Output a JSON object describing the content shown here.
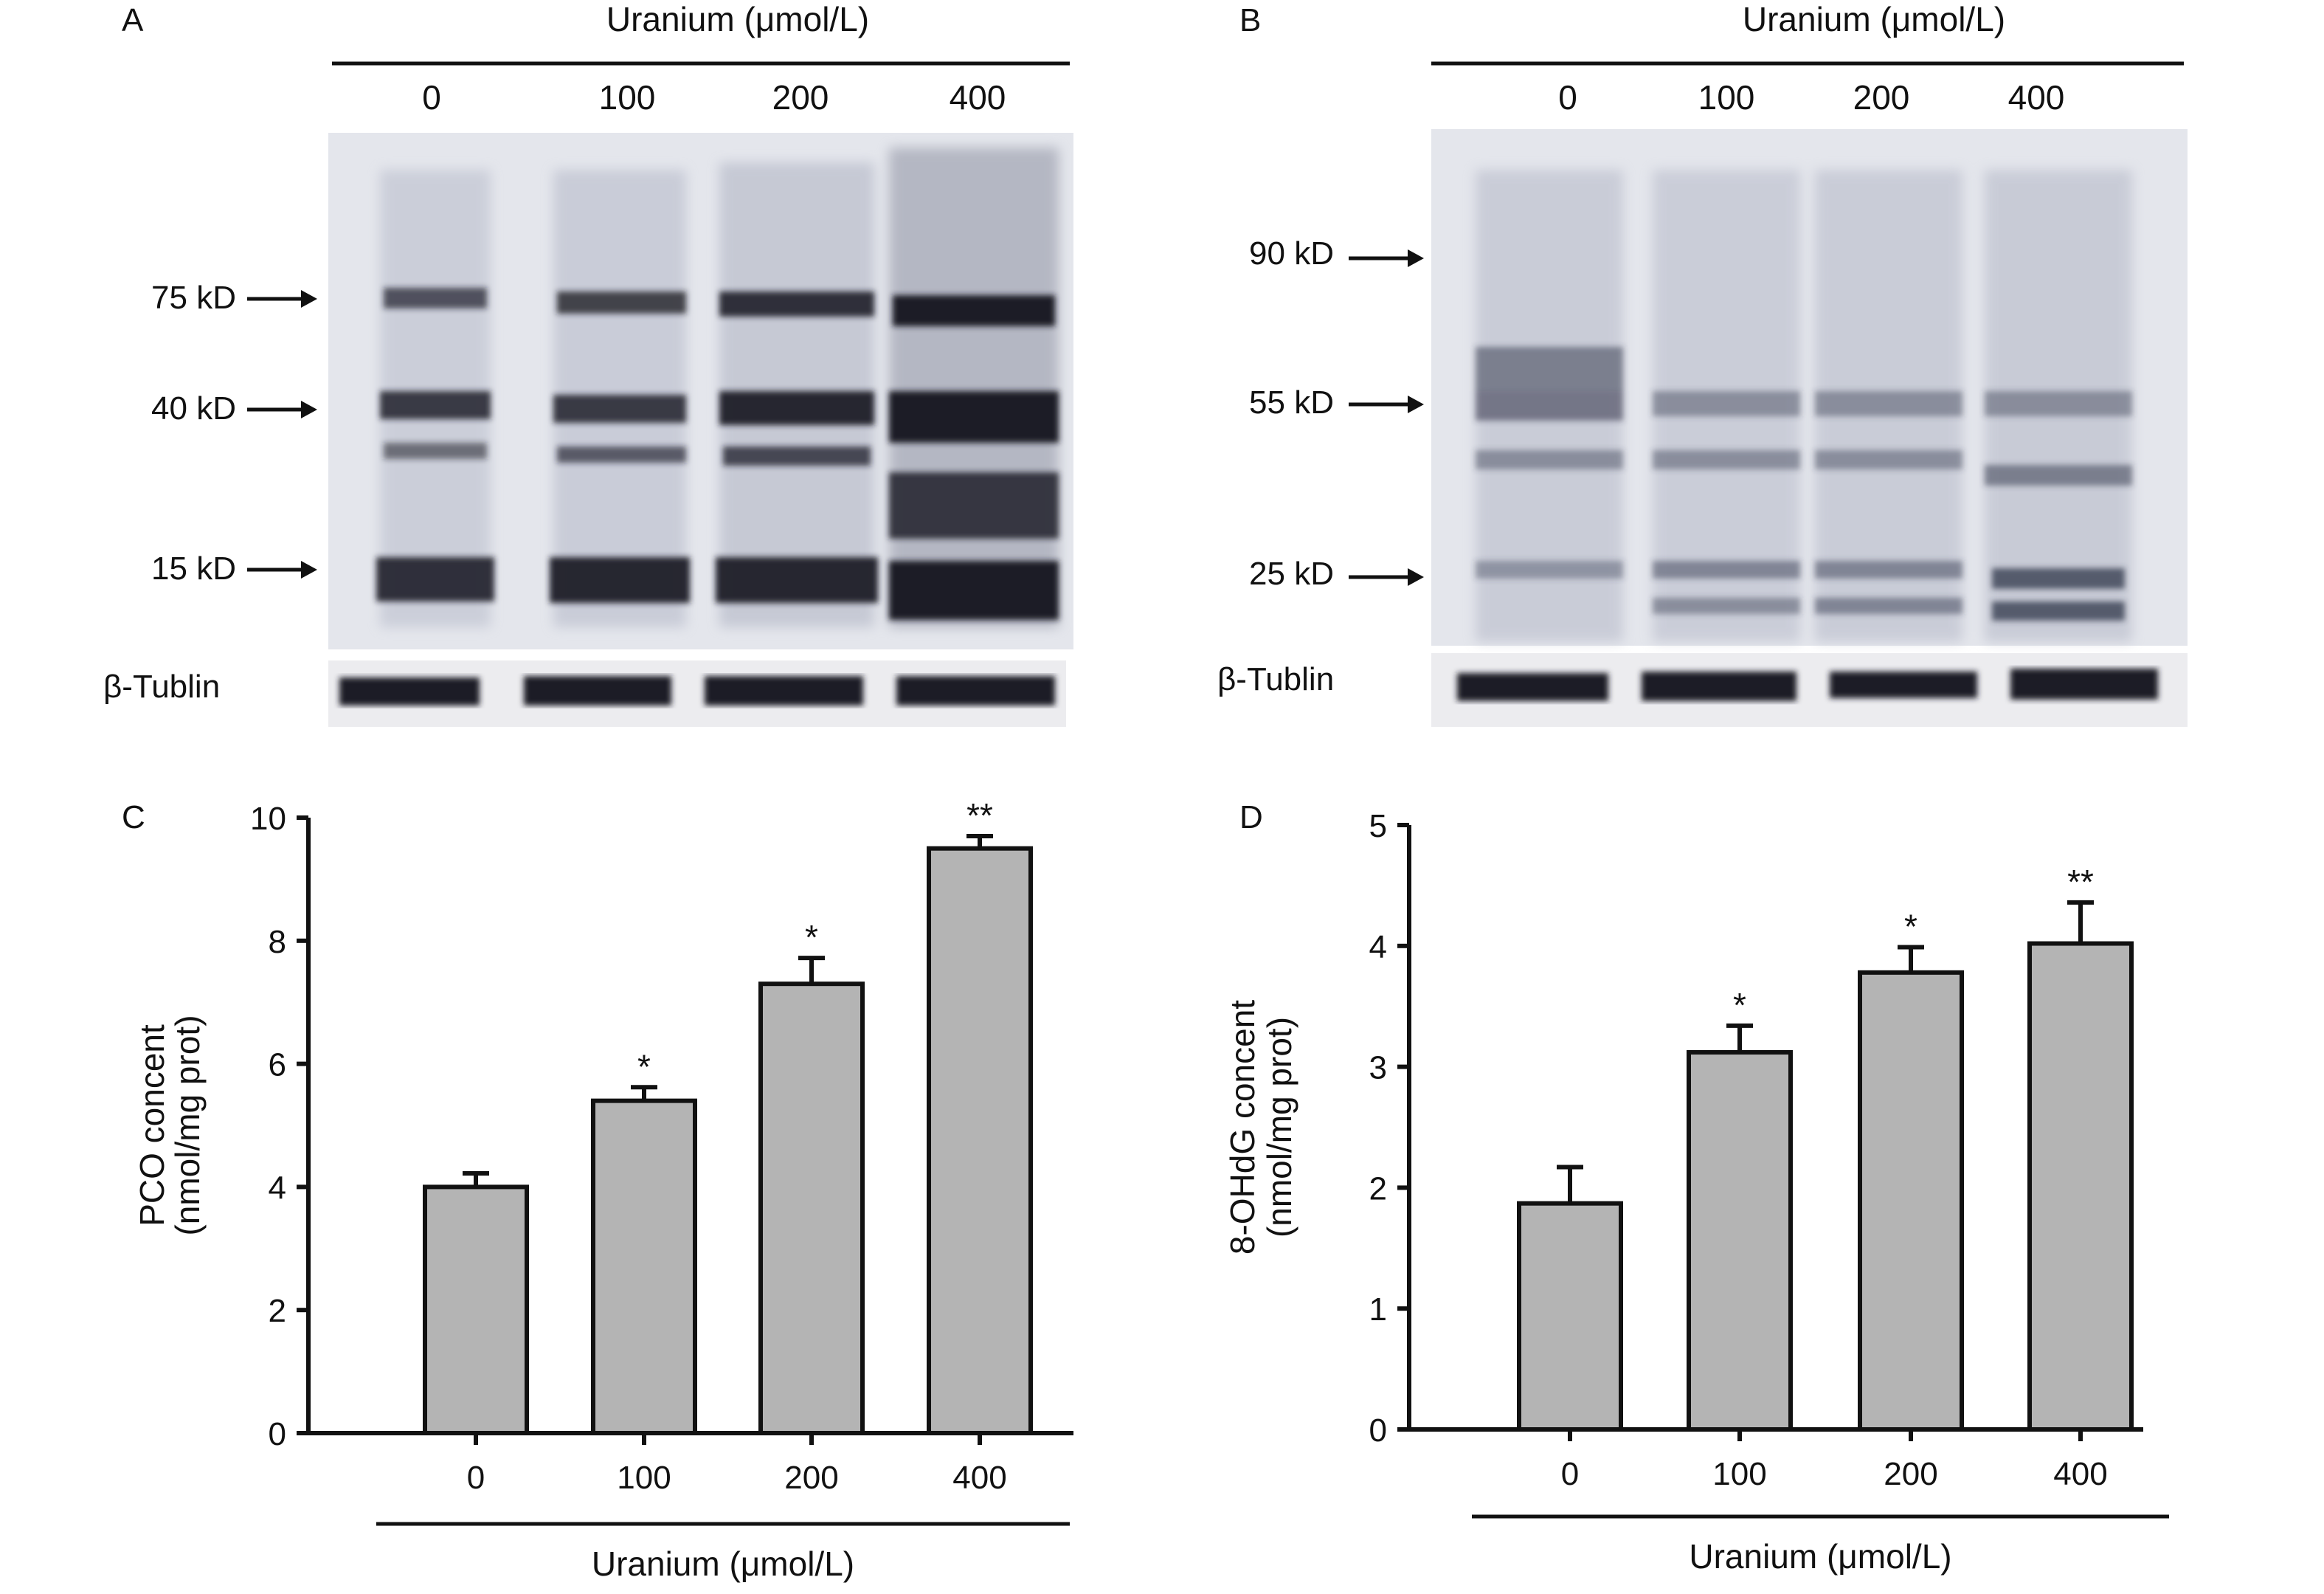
{
  "panels": {
    "A": {
      "label": "A",
      "header": "Uranium (μmol/L)",
      "lanes": [
        "0",
        "100",
        "200",
        "400"
      ],
      "markers": [
        "75 kD",
        "40 kD",
        "15 kD"
      ],
      "loading_control": "β-Tublin"
    },
    "B": {
      "label": "B",
      "header": "Uranium (μmol/L)",
      "lanes": [
        "0",
        "100",
        "200",
        "400"
      ],
      "markers": [
        "90 kD",
        "55 kD",
        "25 kD"
      ],
      "loading_control": "β-Tublin"
    },
    "C": {
      "label": "C"
    },
    "D": {
      "label": "D"
    }
  },
  "colors": {
    "bar_fill": "#b4b4b4",
    "bar_stroke": "#111111",
    "blot_bg": "#e6e8ee",
    "blot_band": "#1e1e28"
  },
  "chart_data": [
    {
      "type": "bar",
      "panel": "C",
      "categories": [
        "0",
        "100",
        "200",
        "400"
      ],
      "values": [
        4.0,
        5.4,
        7.3,
        9.5
      ],
      "errors": [
        0.22,
        0.22,
        0.42,
        0.2
      ],
      "significance": [
        "",
        "*",
        "*",
        "**"
      ],
      "ylabel": "PCO concent",
      "ylabel2": "(nmol/mg prot)",
      "xlabel": "Uranium (μmol/L)",
      "ylim": [
        0,
        10
      ],
      "yticks": [
        0,
        2,
        4,
        6,
        8,
        10
      ]
    },
    {
      "type": "bar",
      "panel": "D",
      "categories": [
        "0",
        "100",
        "200",
        "400"
      ],
      "values": [
        1.87,
        3.12,
        3.78,
        4.02
      ],
      "errors": [
        0.3,
        0.22,
        0.21,
        0.34
      ],
      "significance": [
        "",
        "*",
        "*",
        "**"
      ],
      "ylabel": "8-OHdG concent",
      "ylabel2": "(nmol/mg prot)",
      "xlabel": "Uranium (μmol/L)",
      "ylim": [
        0,
        5
      ],
      "yticks": [
        0,
        1,
        2,
        3,
        4,
        5
      ]
    }
  ]
}
